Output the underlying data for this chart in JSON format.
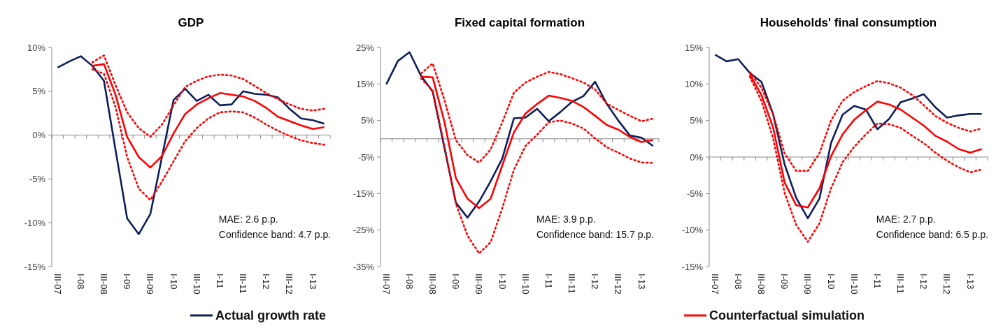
{
  "chart_data": [
    {
      "type": "line",
      "title": "GDP",
      "categories": [
        "III-07",
        null,
        "I-08",
        null,
        "III-08",
        null,
        "I-09",
        null,
        "III-09",
        null,
        "I-10",
        null,
        "III-10",
        null,
        "I-11",
        null,
        "III-11",
        null,
        "I-12",
        null,
        "III-12",
        null,
        "I-13",
        null
      ],
      "ylim": [
        -15,
        10
      ],
      "yticks": [
        {
          "value": -15,
          "label": "-15%"
        },
        {
          "value": -10,
          "label": "-10%"
        },
        {
          "value": -5,
          "label": "-5%"
        },
        {
          "value": 0,
          "label": "0%"
        },
        {
          "value": 5,
          "label": "5%"
        },
        {
          "value": 10,
          "label": "10%"
        }
      ],
      "legend": "bottom right",
      "annotations": [
        "MAE: 2.6 p.p.",
        "Confidence band: 4.7 p.p."
      ],
      "series": [
        {
          "name": "Actual growth rate",
          "color": "#0d1f5c",
          "values": [
            7.7,
            8.4,
            9.0,
            7.9,
            6.2,
            -1.7,
            -9.5,
            -11.3,
            -9.0,
            -2.5,
            4.0,
            5.3,
            3.9,
            4.6,
            3.4,
            3.5,
            5.0,
            4.7,
            4.6,
            4.3,
            3.0,
            1.9,
            1.7,
            1.3
          ]
        },
        {
          "color": "#ff0000",
          "line_style": "dotted",
          "values": [
            null,
            null,
            null,
            8.3,
            9.1,
            5.7,
            2.6,
            0.8,
            -0.2,
            1.2,
            3.4,
            5.5,
            6.2,
            6.7,
            6.9,
            6.8,
            6.4,
            5.6,
            4.8,
            4.1,
            3.5,
            3.0,
            2.8,
            3.0
          ]
        },
        {
          "color": "#ff0000",
          "line_style": "dotted",
          "values": [
            null,
            null,
            null,
            7.5,
            7.0,
            3.2,
            -2.5,
            -6.1,
            -7.4,
            -5.3,
            -3.0,
            -0.7,
            0.8,
            1.9,
            2.6,
            2.7,
            2.6,
            2.0,
            1.2,
            0.5,
            -0.1,
            -0.6,
            -0.9,
            -1.1
          ]
        },
        {
          "color": "#ff0000",
          "values": [
            null,
            null,
            null,
            7.9,
            8.1,
            4.6,
            -0.2,
            -2.5,
            -3.7,
            -2.4,
            0.2,
            2.4,
            3.5,
            4.2,
            4.8,
            4.6,
            4.4,
            3.9,
            3.1,
            2.1,
            1.6,
            1.1,
            0.7,
            0.9
          ]
        }
      ]
    },
    {
      "type": "line",
      "title": "Fixed capital formation",
      "categories": [
        "III-07",
        null,
        "I-08",
        null,
        "III-08",
        null,
        "I-09",
        null,
        "III-09",
        null,
        "I-10",
        null,
        "III-10",
        null,
        "I-11",
        null,
        "III-11",
        null,
        "I-12",
        null,
        "III-12",
        null,
        "I-13",
        null
      ],
      "ylim": [
        -35,
        25
      ],
      "yticks": [
        {
          "value": -35,
          "label": "-35%"
        },
        {
          "value": -25,
          "label": "-25%"
        },
        {
          "value": -15,
          "label": "-15%"
        },
        {
          "value": -5,
          "label": "-5%"
        },
        {
          "value": 5,
          "label": "5%"
        },
        {
          "value": 15,
          "label": "15%"
        },
        {
          "value": 25,
          "label": "25%"
        }
      ],
      "annotations": [
        "MAE: 3.9 p.p.",
        "Confidence band: 15.7 p.p."
      ],
      "series": [
        {
          "color": "#0d1f5c",
          "values": [
            14.9,
            21.3,
            23.7,
            17.2,
            12.9,
            -2.3,
            -17.5,
            -21.6,
            -17.2,
            -11.6,
            -5.4,
            5.6,
            5.8,
            8.2,
            4.8,
            7.3,
            10.1,
            11.7,
            15.6,
            9.6,
            5.0,
            0.9,
            0.3,
            -2.0
          ]
        },
        {
          "color": "#ff0000",
          "line_style": "dotted",
          "values": [
            null,
            null,
            null,
            17.9,
            20.6,
            10.7,
            -0.4,
            -4.5,
            -6.5,
            -2.9,
            4.5,
            12.6,
            15.4,
            17.0,
            18.3,
            17.7,
            16.6,
            15.4,
            13.5,
            9.6,
            7.9,
            6.3,
            4.8,
            5.5
          ]
        },
        {
          "color": "#ff0000",
          "line_style": "dotted",
          "values": [
            null,
            null,
            null,
            16.5,
            13.2,
            -1.7,
            -17.8,
            -26.5,
            -31.4,
            -28.3,
            -19.0,
            -8.5,
            -2.0,
            1.1,
            4.5,
            5.0,
            4.2,
            2.8,
            0.1,
            -2.3,
            -3.8,
            -5.4,
            -6.5,
            -6.6
          ]
        },
        {
          "color": "#ff0000",
          "values": [
            null,
            null,
            null,
            17.0,
            16.8,
            4.8,
            -10.8,
            -16.4,
            -19.0,
            -16.4,
            -7.3,
            1.7,
            6.9,
            9.5,
            11.8,
            11.2,
            10.4,
            8.7,
            6.3,
            3.8,
            2.5,
            0.5,
            -0.9,
            -0.3
          ]
        }
      ]
    },
    {
      "type": "line",
      "title": "Households' final consumption",
      "categories": [
        "III-07",
        null,
        "I-08",
        null,
        "III-08",
        null,
        "I-09",
        null,
        "III-09",
        null,
        "I-10",
        null,
        "III-10",
        null,
        "I-11",
        null,
        "III-11",
        null,
        "I-12",
        null,
        "III-12",
        null,
        "I-13",
        null
      ],
      "ylim": [
        -15,
        15
      ],
      "yticks": [
        {
          "value": -15,
          "label": "-15%"
        },
        {
          "value": -10,
          "label": "-10%"
        },
        {
          "value": -5,
          "label": "-5%"
        },
        {
          "value": 0,
          "label": "0%"
        },
        {
          "value": 5,
          "label": "5%"
        },
        {
          "value": 10,
          "label": "10%"
        },
        {
          "value": 15,
          "label": "15%"
        }
      ],
      "legend": "bottom left",
      "annotations": [
        "MAE: 2.7 p.p.",
        "Confidence band: 6.5 p.p."
      ],
      "series": [
        {
          "color": "#0d1f5c",
          "values": [
            14.0,
            13.1,
            13.4,
            11.5,
            10.3,
            5.9,
            -1.0,
            -5.6,
            -8.4,
            -5.7,
            1.9,
            5.8,
            7.0,
            6.5,
            3.8,
            5.2,
            7.5,
            8.0,
            8.6,
            6.8,
            5.4,
            5.7,
            5.9,
            5.9
          ]
        },
        {
          "color": "#ff0000",
          "line_style": "dotted",
          "values": [
            null,
            null,
            null,
            11.6,
            9.5,
            5.9,
            0.5,
            -1.9,
            -1.9,
            0.5,
            5.0,
            7.7,
            8.9,
            9.7,
            10.4,
            10.1,
            9.5,
            8.5,
            7.1,
            5.6,
            4.7,
            4.0,
            3.5,
            3.9
          ]
        },
        {
          "color": "#ff0000",
          "line_style": "dotted",
          "values": [
            null,
            null,
            null,
            11.0,
            7.7,
            2.6,
            -4.9,
            -9.3,
            -11.6,
            -9.1,
            -4.3,
            -0.7,
            1.4,
            3.1,
            4.6,
            4.5,
            4.0,
            2.9,
            1.9,
            0.6,
            -0.5,
            -1.4,
            -2.1,
            -1.7
          ]
        },
        {
          "name": "Counterfactual simulation",
          "color": "#ff0000",
          "values": [
            null,
            null,
            null,
            11.3,
            8.5,
            4.1,
            -3.5,
            -6.6,
            -6.9,
            -4.3,
            0.1,
            3.1,
            5.1,
            6.4,
            7.6,
            7.2,
            6.5,
            5.4,
            4.3,
            2.9,
            2.1,
            1.1,
            0.6,
            1.1
          ]
        }
      ]
    }
  ]
}
